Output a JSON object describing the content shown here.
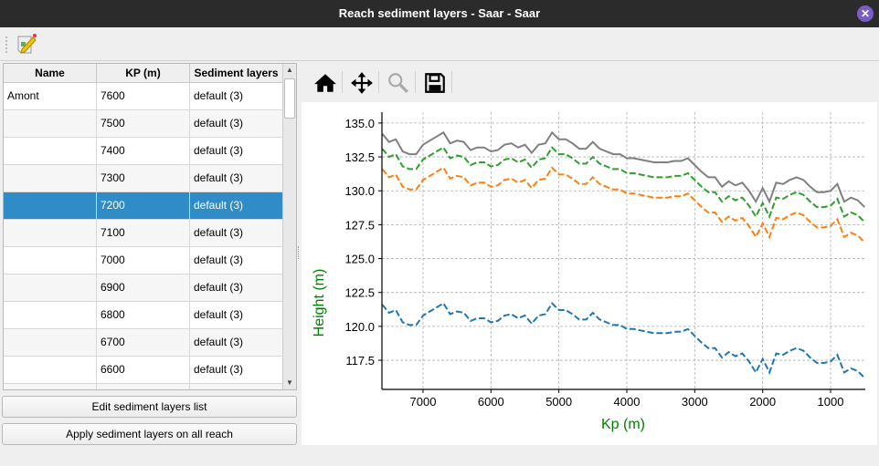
{
  "window": {
    "title": "Reach sediment layers - Saar - Saar",
    "close_icon": "close-icon"
  },
  "toolbar": {
    "edit_icon": "edit-note-icon"
  },
  "table": {
    "columns": [
      "Name",
      "KP (m)",
      "Sediment layers"
    ],
    "rows": [
      {
        "name": "Amont",
        "kp": "7600",
        "layers": "default (3)"
      },
      {
        "name": "",
        "kp": "7500",
        "layers": "default (3)"
      },
      {
        "name": "",
        "kp": "7400",
        "layers": "default (3)"
      },
      {
        "name": "",
        "kp": "7300",
        "layers": "default (3)"
      },
      {
        "name": "",
        "kp": "7200",
        "layers": "default (3)",
        "selected": true
      },
      {
        "name": "",
        "kp": "7100",
        "layers": "default (3)"
      },
      {
        "name": "",
        "kp": "7000",
        "layers": "default (3)"
      },
      {
        "name": "",
        "kp": "6900",
        "layers": "default (3)"
      },
      {
        "name": "",
        "kp": "6800",
        "layers": "default (3)"
      },
      {
        "name": "",
        "kp": "6700",
        "layers": "default (3)"
      },
      {
        "name": "",
        "kp": "6600",
        "layers": "default (3)"
      }
    ],
    "selection_color": "#308cc6"
  },
  "buttons": {
    "edit": "Edit sediment layers list",
    "apply": "Apply sediment layers on all reach"
  },
  "chart_tools": [
    "home-icon",
    "pan-icon",
    "zoom-icon",
    "save-icon"
  ],
  "chart_data": {
    "type": "line",
    "xlabel": "Kp (m)",
    "ylabel": "Height (m)",
    "label_color": "#008000",
    "xlim": [
      7605,
      489
    ],
    "ylim": [
      115.35,
      135.8
    ],
    "x_reversed": true,
    "grid": true,
    "xticks": [
      7000,
      6000,
      5000,
      4000,
      3000,
      2000,
      1000
    ],
    "yticks": [
      "117.5",
      "120.0",
      "122.5",
      "125.0",
      "127.5",
      "130.0",
      "132.5",
      "135.0"
    ],
    "x": [
      7600,
      7500,
      7400,
      7300,
      7200,
      7100,
      7000,
      6900,
      6800,
      6700,
      6600,
      6500,
      6400,
      6300,
      6200,
      6100,
      6000,
      5900,
      5800,
      5700,
      5600,
      5500,
      5400,
      5300,
      5200,
      5100,
      5000,
      4900,
      4800,
      4700,
      4600,
      4500,
      4400,
      4300,
      4200,
      4100,
      4000,
      3900,
      3800,
      3700,
      3600,
      3500,
      3400,
      3300,
      3200,
      3100,
      3000,
      2900,
      2800,
      2700,
      2600,
      2500,
      2400,
      2300,
      2200,
      2100,
      2000,
      1900,
      1800,
      1700,
      1600,
      1500,
      1400,
      1300,
      1200,
      1100,
      1000,
      900,
      800,
      700,
      600,
      500
    ],
    "series": [
      {
        "color": "#808080",
        "style": "solid",
        "values": [
          134.2,
          133.6,
          133.8,
          132.9,
          132.7,
          132.7,
          133.4,
          133.7,
          134.0,
          134.3,
          133.5,
          133.7,
          133.6,
          133.0,
          133.2,
          133.2,
          132.9,
          133.0,
          133.4,
          133.5,
          133.2,
          133.4,
          132.8,
          133.4,
          133.5,
          134.3,
          133.8,
          133.8,
          133.5,
          133.1,
          133.1,
          133.6,
          133.1,
          132.9,
          132.7,
          132.7,
          132.4,
          132.4,
          132.3,
          132.2,
          132.1,
          132.1,
          132.1,
          132.2,
          132.2,
          132.4,
          131.9,
          131.4,
          131.0,
          131.0,
          130.3,
          130.7,
          130.4,
          130.6,
          130.0,
          129.2,
          130.2,
          129.2,
          130.6,
          130.5,
          130.8,
          131.0,
          130.8,
          130.3,
          129.9,
          129.9,
          130.0,
          130.5,
          129.2,
          129.5,
          129.3,
          128.8
        ]
      },
      {
        "color": "#2ca02c",
        "style": "dashed",
        "values": [
          133.1,
          132.5,
          132.7,
          131.8,
          131.6,
          131.6,
          132.3,
          132.6,
          132.9,
          133.2,
          132.4,
          132.6,
          132.5,
          131.9,
          132.1,
          132.1,
          131.8,
          131.9,
          132.3,
          132.4,
          132.1,
          132.3,
          131.7,
          132.3,
          132.4,
          133.2,
          132.7,
          132.7,
          132.4,
          132.0,
          132.0,
          132.5,
          132.0,
          131.8,
          131.6,
          131.6,
          131.3,
          131.3,
          131.2,
          131.1,
          131.0,
          131.0,
          131.0,
          131.1,
          131.1,
          131.3,
          130.8,
          130.3,
          129.9,
          129.9,
          129.2,
          129.6,
          129.3,
          129.5,
          128.9,
          128.1,
          129.1,
          128.1,
          129.5,
          129.4,
          129.7,
          129.9,
          129.7,
          129.2,
          128.8,
          128.8,
          128.9,
          129.4,
          128.1,
          128.4,
          128.2,
          127.7
        ]
      },
      {
        "color": "#ff7f0e",
        "style": "dashed",
        "values": [
          131.6,
          131.0,
          131.2,
          130.3,
          130.1,
          130.1,
          130.8,
          131.1,
          131.4,
          131.7,
          130.9,
          131.1,
          131.0,
          130.4,
          130.6,
          130.6,
          130.3,
          130.4,
          130.8,
          130.9,
          130.6,
          130.8,
          130.2,
          130.8,
          130.9,
          131.7,
          131.2,
          131.2,
          130.9,
          130.5,
          130.5,
          131.0,
          130.5,
          130.3,
          130.1,
          130.1,
          129.8,
          129.8,
          129.7,
          129.6,
          129.5,
          129.5,
          129.5,
          129.6,
          129.6,
          129.8,
          129.3,
          128.8,
          128.4,
          128.4,
          127.7,
          128.1,
          127.8,
          128.0,
          127.4,
          126.6,
          127.6,
          126.6,
          128.0,
          127.9,
          128.2,
          128.4,
          128.2,
          127.7,
          127.3,
          127.3,
          127.4,
          127.9,
          126.6,
          126.9,
          126.7,
          126.2
        ]
      },
      {
        "color": "#1f77b4",
        "style": "dashed",
        "values": [
          121.6,
          121.0,
          121.2,
          120.3,
          120.1,
          120.1,
          120.8,
          121.1,
          121.4,
          121.7,
          120.9,
          121.1,
          121.0,
          120.4,
          120.6,
          120.6,
          120.3,
          120.4,
          120.8,
          120.9,
          120.6,
          120.8,
          120.2,
          120.8,
          120.9,
          121.7,
          121.2,
          121.2,
          120.9,
          120.5,
          120.5,
          121.0,
          120.5,
          120.3,
          120.1,
          120.1,
          119.8,
          119.8,
          119.7,
          119.6,
          119.5,
          119.5,
          119.5,
          119.6,
          119.6,
          119.8,
          119.3,
          118.8,
          118.4,
          118.4,
          117.7,
          118.1,
          117.8,
          118.0,
          117.4,
          116.6,
          117.6,
          116.6,
          118.0,
          117.9,
          118.2,
          118.4,
          118.2,
          117.7,
          117.3,
          117.3,
          117.4,
          117.9,
          116.6,
          116.9,
          116.7,
          116.2
        ]
      }
    ]
  }
}
